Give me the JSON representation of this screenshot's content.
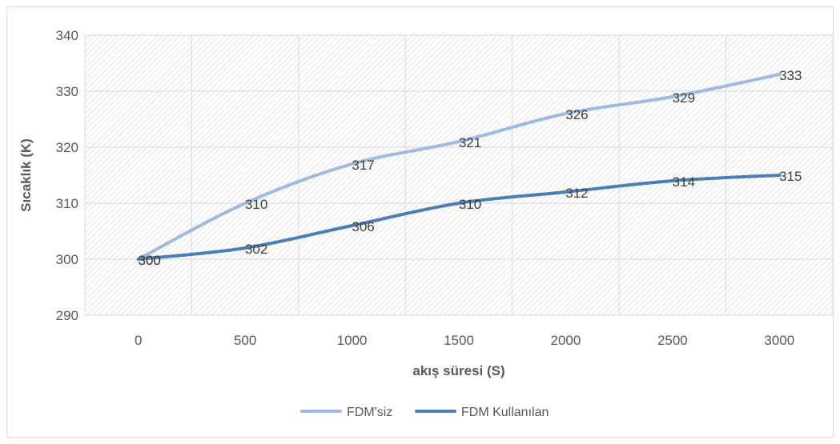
{
  "chart_data": {
    "type": "line",
    "xlabel": "akış süresi (S)",
    "ylabel": "Sıcaklık (K)",
    "x": [
      0,
      500,
      1000,
      1500,
      2000,
      2500,
      3000
    ],
    "x_tick_labels": [
      "0",
      "500",
      "1000",
      "1500",
      "2000",
      "2500",
      "3000"
    ],
    "y_tick_labels": [
      "290",
      "300",
      "310",
      "320",
      "330",
      "340"
    ],
    "ylim": [
      290,
      340
    ],
    "y_ticks": [
      290,
      300,
      310,
      320,
      330,
      340
    ],
    "grid": true,
    "legend_position": "bottom",
    "series": [
      {
        "name": "FDM'siz",
        "color": "#9dbbe0",
        "values": [
          300,
          310,
          317,
          321,
          326,
          329,
          333
        ],
        "labels": [
          "300",
          "310",
          "317",
          "321",
          "326",
          "329",
          "333"
        ]
      },
      {
        "name": "FDM Kullanılan",
        "color": "#4a7fb5",
        "values": [
          300,
          302,
          306,
          310,
          312,
          314,
          315
        ],
        "labels": [
          "300",
          "302",
          "306",
          "310",
          "312",
          "314",
          "315"
        ]
      }
    ]
  }
}
